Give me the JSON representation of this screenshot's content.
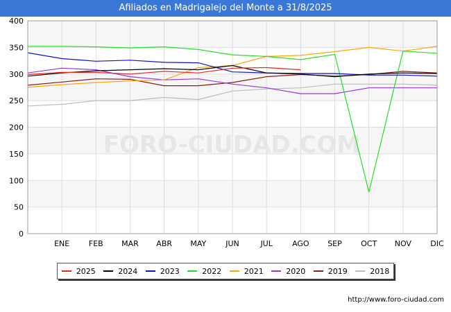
{
  "title": "Afiliados en Madrigalejo del Monte a 31/8/2025",
  "url": "http://www.foro-ciudad.com",
  "watermark": "FORO-CIUDAD.COM",
  "chart_data": {
    "type": "line",
    "categories": [
      "",
      "ENE",
      "FEB",
      "MAR",
      "ABR",
      "MAY",
      "JUN",
      "JUL",
      "AGO",
      "SEP",
      "OCT",
      "NOV",
      "DIC"
    ],
    "ylim": [
      0,
      400
    ],
    "yticks": [
      0,
      50,
      100,
      150,
      200,
      250,
      300,
      350,
      400
    ],
    "grid": true,
    "legend_position": "bottom",
    "series": [
      {
        "name": "2025",
        "color": "#e8251f",
        "values": [
          299,
          303,
          303,
          300,
          305,
          302,
          311,
          312,
          308,
          null,
          null,
          null,
          null
        ]
      },
      {
        "name": "2024",
        "color": "#000000",
        "values": [
          296,
          302,
          306,
          308,
          310,
          308,
          316,
          302,
          300,
          295,
          300,
          302,
          301
        ]
      },
      {
        "name": "2023",
        "color": "#1010d0",
        "values": [
          340,
          329,
          324,
          326,
          322,
          321,
          304,
          302,
          301,
          301,
          298,
          298,
          296
        ]
      },
      {
        "name": "2022",
        "color": "#22dd22",
        "values": [
          352,
          352,
          351,
          349,
          351,
          346,
          336,
          333,
          327,
          337,
          78,
          343,
          339
        ]
      },
      {
        "name": "2021",
        "color": "#ffa500",
        "values": [
          275,
          280,
          284,
          287,
          289,
          312,
          316,
          333,
          335,
          342,
          350,
          343,
          352
        ]
      },
      {
        "name": "2020",
        "color": "#9933dd",
        "values": [
          302,
          311,
          308,
          295,
          289,
          291,
          281,
          274,
          263,
          263,
          274,
          274,
          274
        ]
      },
      {
        "name": "2019",
        "color": "#8b1a1a",
        "values": [
          279,
          285,
          291,
          290,
          278,
          278,
          284,
          295,
          299,
          296,
          299,
          305,
          302
        ]
      },
      {
        "name": "2018",
        "color": "#bbbbbb",
        "values": [
          240,
          243,
          250,
          250,
          256,
          252,
          268,
          272,
          274,
          281,
          281,
          281,
          279
        ]
      }
    ]
  }
}
